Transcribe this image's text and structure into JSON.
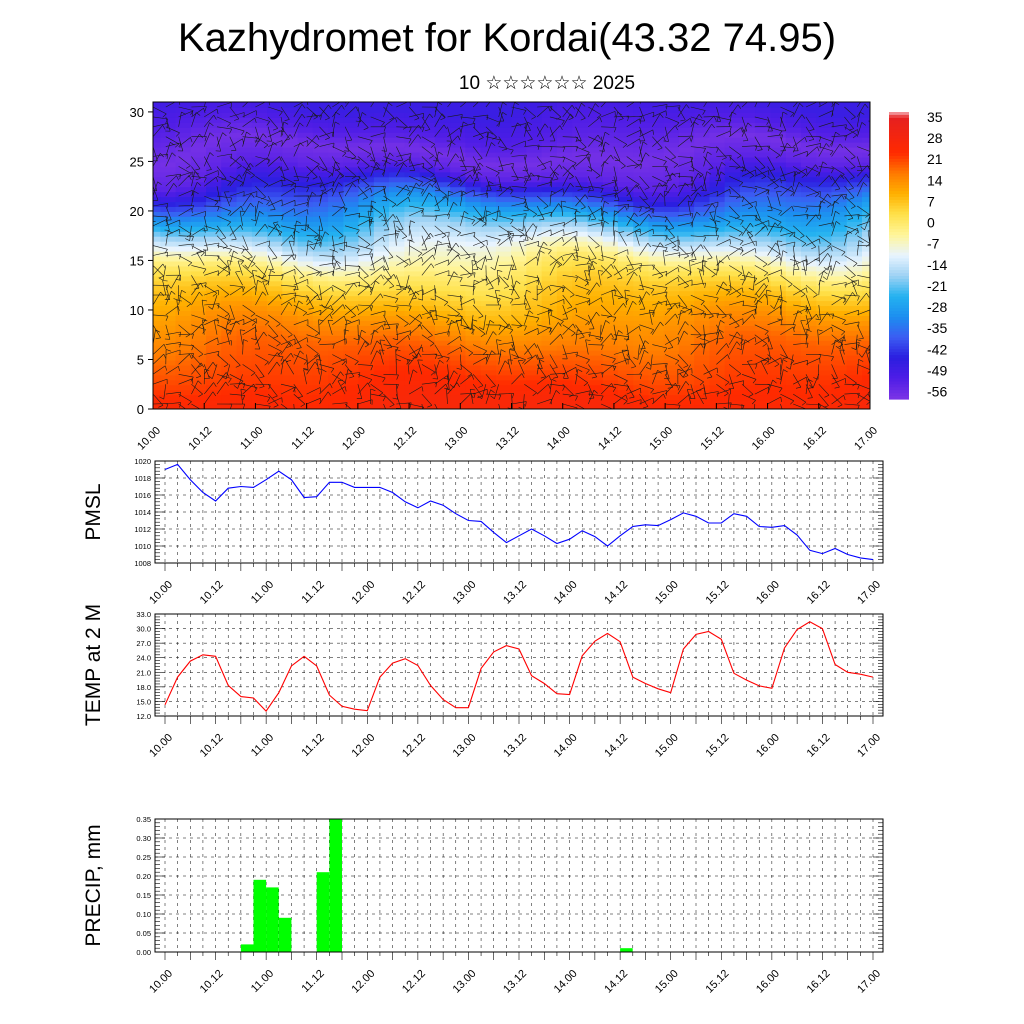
{
  "title": "Kazhydromet for Kordai(43.32 74.95)",
  "subtitle": "10 ☆☆☆☆☆☆ 2025",
  "time_labels": [
    "10.00",
    "10.12",
    "11.00",
    "11.12",
    "12.00",
    "12.12",
    "13.00",
    "13.12",
    "14.00",
    "14.12",
    "15.00",
    "15.12",
    "16.00",
    "16.12",
    "17.00"
  ],
  "chart_data": [
    {
      "type": "heatmap",
      "name": "temperature-wind cross-section",
      "title": "",
      "xlabel": "",
      "ylabel": "",
      "x_range": [
        0,
        14
      ],
      "ylim": [
        0,
        31
      ],
      "y_ticks": [
        "0",
        "5",
        "10",
        "15",
        "20",
        "25",
        "30"
      ],
      "colorbar": {
        "min": -63,
        "max": 35,
        "labels": [
          "35",
          "28",
          "21",
          "14",
          "7",
          "0",
          "-7",
          "-14",
          "-21",
          "-28",
          "-35",
          "-42",
          "-49",
          "-56"
        ],
        "label_values": [
          35,
          28,
          21,
          14,
          7,
          0,
          -7,
          -14,
          -21,
          -28,
          -35,
          -42,
          -49,
          -56
        ]
      },
      "profile": {
        "levels": [
          0,
          3,
          6,
          9,
          12,
          14,
          16,
          18,
          20,
          22,
          24,
          26,
          28,
          31
        ],
        "temps": [
          24,
          20,
          16,
          10,
          3,
          -3,
          -12,
          -22,
          -33,
          -46,
          -58,
          -62,
          -57,
          -52
        ]
      },
      "wind_barbs": true
    },
    {
      "type": "line",
      "ylabel": "PMSL",
      "ylim": [
        1008,
        1020
      ],
      "y_ticks": [
        "1008",
        "1010",
        "1012",
        "1014",
        "1016",
        "1018",
        "1020"
      ],
      "color": "#0000ff",
      "x": [
        0.0,
        0.25,
        0.5,
        0.75,
        1.0,
        1.25,
        1.5,
        1.75,
        2.0,
        2.25,
        2.5,
        2.75,
        3.0,
        3.25,
        3.5,
        3.75,
        4.0,
        4.25,
        4.5,
        4.75,
        5.0,
        5.25,
        5.5,
        5.75,
        6.0,
        6.25,
        6.5,
        6.75,
        7.0,
        7.25,
        7.5,
        7.75,
        8.0,
        8.25,
        8.5,
        8.75,
        9.0,
        9.25,
        9.5,
        9.75,
        10.0,
        10.25,
        10.5,
        10.75,
        11.0,
        11.25,
        11.5,
        11.75,
        12.0,
        12.25,
        12.5,
        12.75,
        13.0,
        13.25,
        13.5,
        13.75,
        14.0
      ],
      "values": [
        1019.0,
        1019.6,
        1017.8,
        1016.3,
        1015.3,
        1016.8,
        1017.0,
        1016.9,
        1017.8,
        1018.8,
        1017.8,
        1015.7,
        1015.8,
        1017.5,
        1017.5,
        1016.9,
        1016.9,
        1016.9,
        1016.3,
        1015.2,
        1014.5,
        1015.3,
        1014.8,
        1013.8,
        1013.0,
        1012.9,
        1011.6,
        1010.4,
        1011.2,
        1012.0,
        1011.2,
        1010.3,
        1010.8,
        1011.8,
        1011.1,
        1010.0,
        1011.2,
        1012.3,
        1012.5,
        1012.4,
        1013.1,
        1013.9,
        1013.5,
        1012.7,
        1012.7,
        1013.8,
        1013.5,
        1012.3,
        1012.2,
        1012.4,
        1011.3,
        1009.5,
        1009.1,
        1009.7,
        1009.0,
        1008.6,
        1008.4
      ]
    },
    {
      "type": "line",
      "ylabel": "TEMP at 2 M",
      "ylim": [
        12.0,
        33.0
      ],
      "y_ticks": [
        "12.0",
        "15.0",
        "18.0",
        "21.0",
        "24.0",
        "27.0",
        "30.0",
        "33.0"
      ],
      "color": "#ff0000",
      "x": [
        0.0,
        0.25,
        0.5,
        0.75,
        1.0,
        1.25,
        1.5,
        1.75,
        2.0,
        2.25,
        2.5,
        2.75,
        3.0,
        3.25,
        3.5,
        3.75,
        4.0,
        4.25,
        4.5,
        4.75,
        5.0,
        5.25,
        5.5,
        5.75,
        6.0,
        6.25,
        6.5,
        6.75,
        7.0,
        7.25,
        7.5,
        7.75,
        8.0,
        8.25,
        8.5,
        8.75,
        9.0,
        9.25,
        9.5,
        9.75,
        10.0,
        10.25,
        10.5,
        10.75,
        11.0,
        11.25,
        11.5,
        11.75,
        12.0,
        12.25,
        12.5,
        12.75,
        13.0,
        13.25,
        13.5,
        13.75,
        14.0
      ],
      "values": [
        14.3,
        20.0,
        23.3,
        24.6,
        24.3,
        18.3,
        16.0,
        15.7,
        13.0,
        16.8,
        22.3,
        24.3,
        22.3,
        16.3,
        14.0,
        13.4,
        13.1,
        20.0,
        22.9,
        23.8,
        22.4,
        18.3,
        15.4,
        13.7,
        13.7,
        21.8,
        25.2,
        26.5,
        25.8,
        20.3,
        18.7,
        16.6,
        16.4,
        24.4,
        27.4,
        29.0,
        27.3,
        20.0,
        18.7,
        17.6,
        16.8,
        25.8,
        28.8,
        29.4,
        27.8,
        20.8,
        19.4,
        18.2,
        17.7,
        26.0,
        29.8,
        31.4,
        30.0,
        22.6,
        21.0,
        20.6,
        20.0
      ]
    },
    {
      "type": "bar",
      "ylabel": "PRECIP, mm",
      "ylim": [
        0.0,
        0.35
      ],
      "y_ticks": [
        "0.00",
        "0.05",
        "0.10",
        "0.15",
        "0.20",
        "0.25",
        "0.30",
        "0.35"
      ],
      "color": "#00ff00",
      "bar_width": 0.25,
      "x": [
        1.5,
        1.75,
        2.0,
        2.25,
        3.0,
        3.25,
        9.0
      ],
      "values": [
        0.02,
        0.19,
        0.17,
        0.09,
        0.21,
        0.35,
        0.01
      ]
    }
  ]
}
